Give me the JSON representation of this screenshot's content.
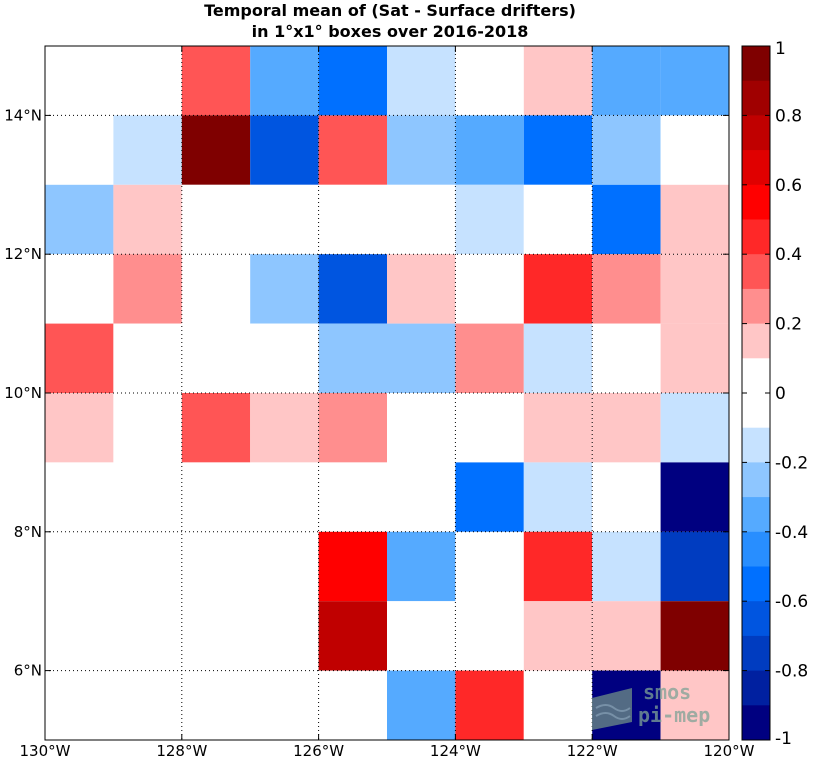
{
  "chart_data": {
    "type": "heatmap",
    "title_lines": [
      "Temporal mean of (Sat - Surface drifters)",
      "in 1°x1° boxes over 2016-2018"
    ],
    "xlim": [
      -130,
      -120
    ],
    "ylim": [
      5,
      15
    ],
    "x_ticks": [
      {
        "value": -130,
        "label": "130°W"
      },
      {
        "value": -128,
        "label": "128°W"
      },
      {
        "value": -126,
        "label": "126°W"
      },
      {
        "value": -124,
        "label": "124°W"
      },
      {
        "value": -122,
        "label": "122°W"
      },
      {
        "value": -120,
        "label": "120°W"
      }
    ],
    "y_ticks": [
      {
        "value": 6,
        "label": "6°N"
      },
      {
        "value": 8,
        "label": "8°N"
      },
      {
        "value": 10,
        "label": "10°N"
      },
      {
        "value": 12,
        "label": "12°N"
      },
      {
        "value": 14,
        "label": "14°N"
      }
    ],
    "grid": "dotted",
    "lon_edges": [
      -130,
      -129,
      -128,
      -127,
      -126,
      -125,
      -124,
      -123,
      -122,
      -121,
      -120
    ],
    "lat_rows_top_to_bottom": [
      15,
      14,
      13,
      12,
      11,
      10,
      9,
      8,
      7,
      6
    ],
    "values": [
      [
        0,
        0,
        0.35,
        -0.35,
        -0.5,
        -0.15,
        0,
        0.15,
        -0.35,
        -0.35
      ],
      [
        0,
        -0.15,
        0.95,
        -0.6,
        0.35,
        -0.25,
        -0.35,
        -0.5,
        -0.25,
        0
      ],
      [
        -0.25,
        0.15,
        0,
        0,
        0,
        0,
        -0.15,
        0,
        -0.5,
        0.15
      ],
      [
        0,
        0.25,
        0,
        -0.25,
        -0.6,
        0.15,
        0,
        0.45,
        0.25,
        0.15
      ],
      [
        0.35,
        0,
        0,
        0,
        -0.25,
        -0.25,
        0.25,
        -0.15,
        0,
        0.15
      ],
      [
        0.15,
        0,
        0.35,
        0.15,
        0.25,
        0,
        0,
        0.15,
        0.15,
        -0.15
      ],
      [
        0,
        0,
        0,
        0,
        0,
        0,
        -0.5,
        -0.15,
        0,
        -0.95
      ],
      [
        0,
        0,
        0,
        0,
        0.55,
        -0.35,
        0,
        0.45,
        -0.15,
        -0.75
      ],
      [
        0,
        0,
        0,
        0,
        0.75,
        0,
        0,
        0.15,
        0.15,
        0.9
      ],
      [
        0,
        0,
        0,
        0,
        0,
        -0.35,
        0.45,
        0,
        -0.95,
        0.15
      ]
    ],
    "colorbar": {
      "range": [
        -1,
        1
      ],
      "tick_values": [
        1,
        0.8,
        0.6,
        0.4,
        0.2,
        0,
        -0.2,
        -0.4,
        -0.6,
        -0.8,
        -1
      ],
      "tick_labels": [
        "1",
        "0.8",
        "0.6",
        "0.4",
        "0.2",
        "0",
        "-0.2",
        "-0.4",
        "-0.6",
        "-0.8",
        "-1"
      ],
      "colors_top_to_bottom": [
        "#7f0000",
        "#a00000",
        "#c00000",
        "#e00000",
        "#ff0000",
        "#ff2828",
        "#ff5555",
        "#ff8e8e",
        "#ffc6c6",
        "#ffffff",
        "#ffffff",
        "#c6e2ff",
        "#8ec6ff",
        "#55aaff",
        "#288eff",
        "#0070ff",
        "#0055e0",
        "#003cc0",
        "#0020a0",
        "#000080"
      ]
    }
  },
  "logo": {
    "line1": "smos",
    "line2": "pi-mep"
  }
}
